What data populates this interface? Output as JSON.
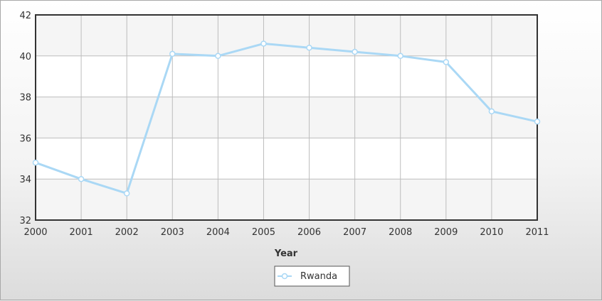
{
  "chart_data": {
    "type": "line",
    "title": "",
    "xlabel": "Year",
    "ylabel": "",
    "x": [
      "2000",
      "2001",
      "2002",
      "2003",
      "2004",
      "2005",
      "2006",
      "2007",
      "2008",
      "2009",
      "2010",
      "2011"
    ],
    "ylim": [
      32,
      42
    ],
    "yticks": [
      32,
      34,
      36,
      38,
      40,
      42
    ],
    "grid": true,
    "legend_position": "bottom",
    "series": [
      {
        "name": "Rwanda",
        "color": "#aad8f5",
        "values": [
          34.8,
          34.0,
          33.3,
          40.1,
          40.0,
          40.6,
          40.4,
          40.2,
          40.0,
          39.7,
          37.3,
          36.8
        ]
      }
    ]
  }
}
